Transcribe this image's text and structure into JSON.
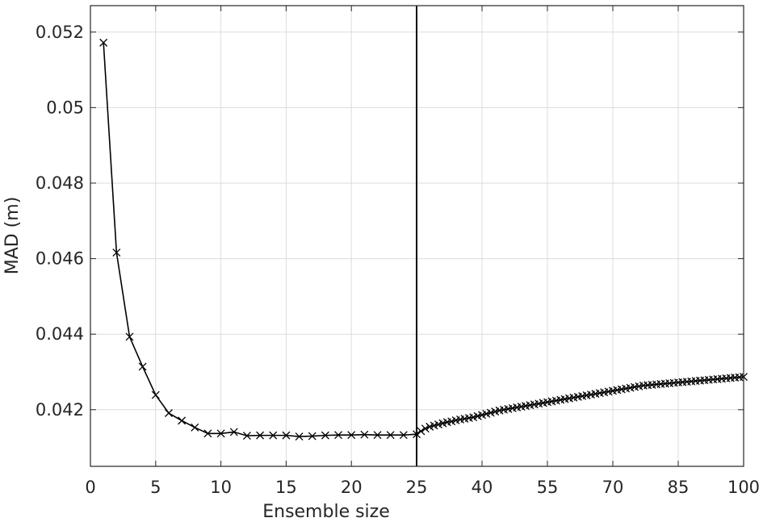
{
  "chart_data": {
    "type": "line",
    "title": "",
    "xlabel": "Ensemble size",
    "ylabel": "MAD (m)",
    "grid": true,
    "legend": "none",
    "line_color": "#000000",
    "marker": "x",
    "x_axis_note": "piecewise axis: 0–25 shown with ticks every 5, 25–100 compressed with ticks every 15",
    "xticks": [
      "0",
      "5",
      "10",
      "15",
      "20",
      "25",
      "40",
      "55",
      "70",
      "85",
      "100"
    ],
    "yticks": [
      "0.042",
      "0.044",
      "0.046",
      "0.048",
      "0.05",
      "0.052"
    ],
    "ylim": [
      0.0405,
      0.0527
    ],
    "divider_at_x": 25,
    "series": [
      {
        "x": [
          1,
          2,
          3,
          4,
          5,
          6,
          7,
          8,
          9,
          10,
          11,
          12,
          13,
          14,
          15,
          16,
          17,
          18,
          19,
          20,
          21,
          22,
          23,
          24,
          25,
          26,
          27,
          28,
          29,
          30,
          31,
          32,
          33,
          34,
          35,
          36,
          37,
          38,
          39,
          40,
          41,
          42,
          43,
          44,
          45,
          46,
          47,
          48,
          49,
          50,
          51,
          52,
          53,
          54,
          55,
          56,
          57,
          58,
          59,
          60,
          61,
          62,
          63,
          64,
          65,
          66,
          67,
          68,
          69,
          70,
          71,
          72,
          73,
          74,
          75,
          76,
          77,
          78,
          79,
          80,
          81,
          82,
          83,
          84,
          85,
          86,
          87,
          88,
          89,
          90,
          91,
          92,
          93,
          94,
          95,
          96,
          97,
          98,
          99,
          100
        ],
        "values": [
          0.05172,
          0.04616,
          0.04393,
          0.04314,
          0.04239,
          0.04191,
          0.04171,
          0.04153,
          0.04137,
          0.04137,
          0.04141,
          0.04131,
          0.04132,
          0.04132,
          0.04132,
          0.04129,
          0.0413,
          0.04132,
          0.04133,
          0.04133,
          0.04134,
          0.04133,
          0.04133,
          0.04133,
          0.04135,
          0.04143,
          0.0415,
          0.04155,
          0.04158,
          0.04161,
          0.04164,
          0.04167,
          0.04169,
          0.04172,
          0.04174,
          0.04176,
          0.04178,
          0.0418,
          0.04183,
          0.04186,
          0.04189,
          0.04192,
          0.04195,
          0.04198,
          0.042,
          0.04202,
          0.04204,
          0.04206,
          0.04208,
          0.0421,
          0.04212,
          0.04214,
          0.04216,
          0.04218,
          0.0422,
          0.04222,
          0.04224,
          0.04226,
          0.04228,
          0.0423,
          0.04232,
          0.04234,
          0.04236,
          0.04238,
          0.0424,
          0.04242,
          0.04244,
          0.04246,
          0.04248,
          0.0425,
          0.04252,
          0.04254,
          0.04256,
          0.04258,
          0.0426,
          0.04262,
          0.04264,
          0.04265,
          0.04266,
          0.04267,
          0.04268,
          0.04269,
          0.0427,
          0.04271,
          0.04272,
          0.04273,
          0.04274,
          0.04275,
          0.04276,
          0.04277,
          0.04278,
          0.04279,
          0.0428,
          0.04281,
          0.04282,
          0.04283,
          0.04284,
          0.04285,
          0.04286,
          0.04287
        ]
      }
    ]
  }
}
